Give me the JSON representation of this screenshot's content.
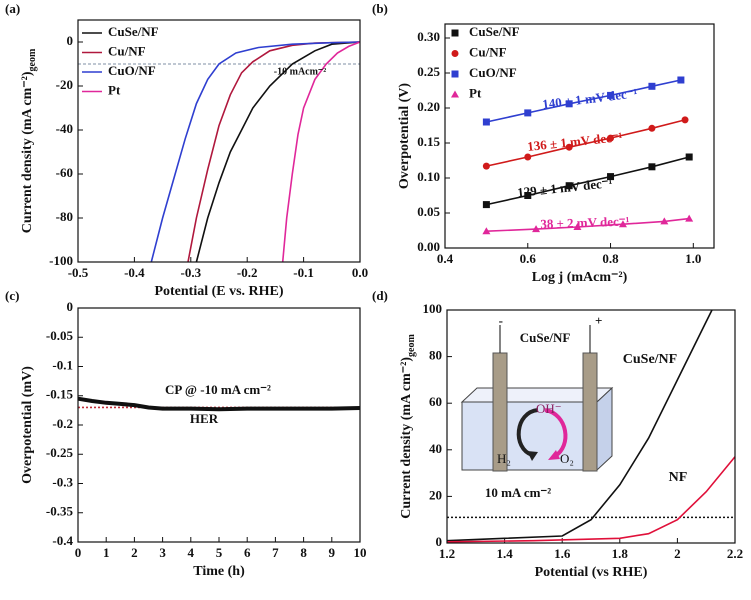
{
  "chart_data": [
    {
      "type": "line",
      "panel": "(a)",
      "x_label": "Potential (E vs. RHE)",
      "y_label": "Current density (mA cm⁻²)",
      "y_label_sub": "geom",
      "xlim": [
        -0.5,
        0
      ],
      "ylim": [
        -100,
        10
      ],
      "xticks": [
        -0.5,
        -0.4,
        -0.3,
        -0.2,
        -0.1,
        {
          "value": 0,
          "label": "0.0"
        }
      ],
      "yticks": [
        0,
        -20,
        -40,
        -60,
        -80,
        -100
      ],
      "ref_line": -10,
      "ref_color": "#7f8fa6",
      "series": [
        {
          "name": "CuSe/NF",
          "color": "#111111",
          "x": [
            -0.29,
            -0.27,
            -0.25,
            -0.23,
            -0.21,
            -0.19,
            -0.16,
            -0.12,
            -0.08,
            -0.05,
            0
          ],
          "values": [
            -100,
            -80,
            -64,
            -50,
            -40,
            -30,
            -20,
            -10,
            -4,
            -1,
            0
          ]
        },
        {
          "name": "Cu/NF",
          "color": "#b0183d",
          "x": [
            -0.305,
            -0.29,
            -0.27,
            -0.25,
            -0.23,
            -0.21,
            -0.19,
            -0.16,
            -0.12,
            -0.08,
            0
          ],
          "values": [
            -100,
            -80,
            -58,
            -38,
            -24,
            -14,
            -9,
            -4,
            -1.5,
            -0.5,
            0
          ]
        },
        {
          "name": "CuO/NF",
          "color": "#2f3fd0",
          "x": [
            -0.37,
            -0.35,
            -0.33,
            -0.31,
            -0.29,
            -0.27,
            -0.25,
            -0.22,
            -0.18,
            -0.12,
            -0.05,
            0
          ],
          "values": [
            -100,
            -80,
            -62,
            -44,
            -28,
            -17,
            -10,
            -5,
            -2.5,
            -1,
            -0.3,
            0
          ]
        },
        {
          "name": "Pt",
          "color": "#e0279a",
          "x": [
            -0.137,
            -0.13,
            -0.12,
            -0.11,
            -0.1,
            -0.08,
            -0.06,
            -0.04,
            -0.02,
            0
          ],
          "values": [
            -100,
            -80,
            -60,
            -42,
            -30,
            -17,
            -10,
            -5,
            -2,
            0
          ]
        }
      ],
      "annotations": [
        "-10 mAcm⁻²"
      ]
    },
    {
      "type": "scatter",
      "panel": "(b)",
      "x_label": "Log j (mAcm⁻²)",
      "y_label": "Overpotential (V)",
      "xlim": [
        0.4,
        1.05
      ],
      "ylim": [
        0,
        0.32
      ],
      "xticks": [
        0.4,
        0.6,
        0.8,
        {
          "value": 1,
          "label": "1.0"
        }
      ],
      "yticks": [
        {
          "value": 0,
          "label": "0.00"
        },
        0.05,
        {
          "value": 0.1,
          "label": "0.10"
        },
        0.15,
        {
          "value": 0.2,
          "label": "0.20"
        },
        0.25,
        {
          "value": 0.3,
          "label": "0.30"
        }
      ],
      "series": [
        {
          "name": "CuSe/NF",
          "color": "#111111",
          "marker": "square",
          "x": [
            0.5,
            0.6,
            0.7,
            0.8,
            0.9,
            0.99
          ],
          "values": [
            0.062,
            0.075,
            0.089,
            0.102,
            0.116,
            0.13
          ]
        },
        {
          "name": "Cu/NF",
          "color": "#d01a1a",
          "marker": "circle",
          "x": [
            0.5,
            0.6,
            0.7,
            0.8,
            0.9,
            0.98
          ],
          "values": [
            0.117,
            0.13,
            0.144,
            0.157,
            0.171,
            0.183
          ]
        },
        {
          "name": "CuO/NF",
          "color": "#2f3fd0",
          "marker": "square",
          "x": [
            0.5,
            0.6,
            0.7,
            0.8,
            0.9,
            0.97
          ],
          "values": [
            0.18,
            0.193,
            0.206,
            0.218,
            0.231,
            0.24
          ]
        },
        {
          "name": "Pt",
          "color": "#e0279a",
          "marker": "triangle",
          "x": [
            0.5,
            0.62,
            0.72,
            0.83,
            0.93,
            0.99
          ],
          "values": [
            0.024,
            0.027,
            0.03,
            0.034,
            0.038,
            0.042
          ]
        }
      ],
      "annotations": [
        "140 ± 1 mV dec⁻¹",
        "136 ± 1 mV dec⁻¹",
        "129 ± 1 mV dec⁻¹",
        "38 ± 2 mV dec⁻¹"
      ]
    },
    {
      "type": "line",
      "panel": "(c)",
      "x_label": "Time (h)",
      "y_label": "Overpotential (mV)",
      "xlim": [
        0,
        10
      ],
      "ylim": [
        -0.4,
        0
      ],
      "xticks": [
        0,
        1,
        2,
        3,
        4,
        5,
        6,
        7,
        8,
        9,
        10
      ],
      "yticks": [
        0,
        -0.05,
        -0.1,
        -0.15,
        -0.2,
        -0.25,
        -0.3,
        -0.35,
        -0.4
      ],
      "ref_line": -0.17,
      "ref_color": "#c0303a",
      "series": [
        {
          "name": null,
          "color": "#111111",
          "x": [
            0,
            0.5,
            1,
            1.5,
            2,
            2.5,
            3,
            4,
            5,
            6,
            7,
            8,
            9,
            10
          ],
          "values": [
            -0.155,
            -0.159,
            -0.162,
            -0.164,
            -0.166,
            -0.17,
            -0.172,
            -0.172,
            -0.173,
            -0.172,
            -0.172,
            -0.172,
            -0.172,
            -0.171
          ]
        }
      ],
      "annotations": [
        "CP @ -10 mA cm⁻²",
        "HER"
      ]
    },
    {
      "type": "line",
      "panel": "(d)",
      "x_label": "Potential (vs RHE)",
      "y_label": "Current density (mA cm⁻²)",
      "y_label_sub": "geom",
      "xlim": [
        1.2,
        2.2
      ],
      "ylim": [
        0,
        100
      ],
      "xticks": [
        1.2,
        1.4,
        1.6,
        1.8,
        2,
        2.2
      ],
      "yticks": [
        0,
        20,
        40,
        60,
        80,
        100
      ],
      "ref_line": 11,
      "ref_color": "#111111",
      "series": [
        {
          "name": "CuSe/NF",
          "color": "#111111",
          "x": [
            1.2,
            1.4,
            1.6,
            1.7,
            1.8,
            1.9,
            2.0,
            2.1,
            2.12
          ],
          "values": [
            1,
            2,
            3,
            10,
            25,
            45,
            70,
            95,
            100
          ]
        },
        {
          "name": "NF",
          "color": "#e0103a",
          "x": [
            1.2,
            1.5,
            1.8,
            1.9,
            2.0,
            2.1,
            2.2
          ],
          "values": [
            0.5,
            1,
            2,
            4,
            10,
            22,
            37
          ]
        }
      ],
      "annotations": [
        "10 mA cm⁻²"
      ],
      "inset_labels": {
        "electrode": "CuSe/NF",
        "minus": "-",
        "plus": "+",
        "hydroxide": "OH⁻",
        "hydrogen": "H₂",
        "oxygen": "O₂"
      }
    }
  ]
}
